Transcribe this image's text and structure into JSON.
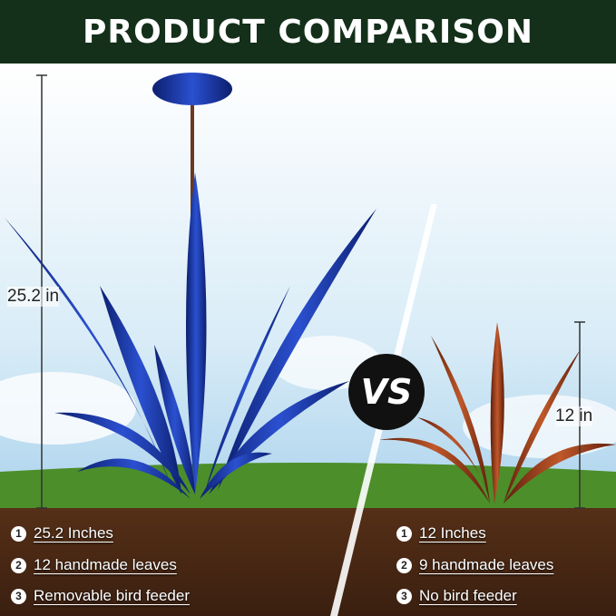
{
  "title": "PRODUCT COMPARISON",
  "vs_label": "VS",
  "left": {
    "height_label": "25.2 in",
    "features": [
      {
        "num": "1",
        "text": "25.2 Inches"
      },
      {
        "num": "2",
        "text": "12 handmade leaves"
      },
      {
        "num": "3",
        "text": "Removable bird feeder"
      }
    ],
    "color": "#1f3fb0"
  },
  "right": {
    "height_label": "12 in",
    "features": [
      {
        "num": "1",
        "text": "12 Inches"
      },
      {
        "num": "2",
        "text": "9 handmade leaves"
      },
      {
        "num": "3",
        "text": "No bird feeder"
      }
    ],
    "color": "#9a3a1c"
  }
}
